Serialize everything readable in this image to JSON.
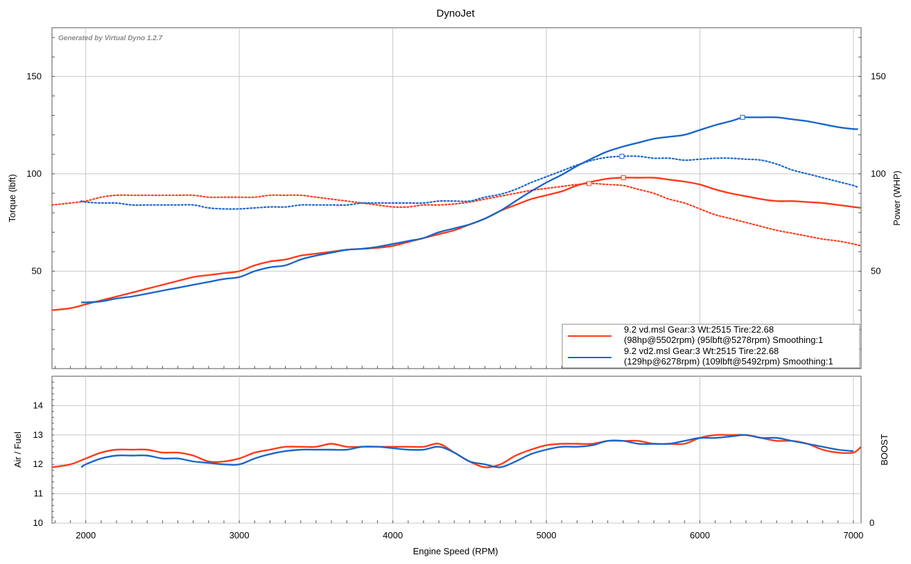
{
  "chart_data": {
    "type": "line",
    "title": "DynoJet",
    "watermark": "Generated by Virtual Dyno 1.2.7",
    "xlabel": "Engine Speed (RPM)",
    "xlim": [
      1780,
      7050
    ],
    "x_ticks": [
      "2000",
      "3000",
      "4000",
      "5000",
      "6000",
      "7000"
    ],
    "top": {
      "ylabel_left": "Torque (lbft)",
      "ylabel_right": "Power (WHP)",
      "ylim": [
        0,
        175
      ],
      "y_ticks": [
        "50",
        "100",
        "150"
      ],
      "series": [
        {
          "name": "9.2 vd.msl",
          "color": "#ff3a1a",
          "power": {
            "x": [
              1780,
              1900,
              2000,
              2100,
              2200,
              2300,
              2400,
              2500,
              2600,
              2700,
              2800,
              2900,
              3000,
              3100,
              3200,
              3300,
              3400,
              3500,
              3600,
              3700,
              3800,
              3900,
              4000,
              4100,
              4200,
              4300,
              4400,
              4500,
              4600,
              4700,
              4800,
              4900,
              5000,
              5100,
              5200,
              5300,
              5400,
              5500,
              5600,
              5700,
              5800,
              5900,
              6000,
              6100,
              6200,
              6300,
              6400,
              6500,
              6600,
              6700,
              6800,
              6900,
              7000,
              7050
            ],
            "y": [
              30,
              31,
              33,
              35,
              37,
              39,
              41,
              43,
              45,
              47,
              48,
              49,
              50,
              53,
              55,
              56,
              58,
              59,
              60,
              61,
              61.5,
              62,
              63,
              65,
              67,
              69,
              71,
              74,
              77,
              81,
              84,
              87,
              89,
              91,
              94,
              96,
              97.5,
              98,
              98,
              98,
              97,
              96,
              94.5,
              92,
              90,
              88.5,
              87,
              86,
              86,
              85.5,
              85,
              84,
              83,
              82.5
            ]
          },
          "torque": {
            "x": [
              1780,
              1900,
              2000,
              2100,
              2200,
              2300,
              2400,
              2500,
              2600,
              2700,
              2800,
              2900,
              3000,
              3100,
              3200,
              3300,
              3400,
              3500,
              3600,
              3700,
              3800,
              3900,
              4000,
              4100,
              4200,
              4300,
              4400,
              4500,
              4600,
              4700,
              4800,
              4900,
              5000,
              5100,
              5200,
              5300,
              5400,
              5500,
              5600,
              5700,
              5800,
              5900,
              6000,
              6100,
              6200,
              6300,
              6400,
              6500,
              6600,
              6700,
              6800,
              6900,
              7000,
              7050
            ],
            "y": [
              84,
              85,
              86,
              88,
              89,
              89,
              89,
              89,
              89,
              89,
              88,
              88,
              88,
              88,
              89,
              89,
              89,
              88,
              87,
              86,
              85,
              84,
              83,
              83,
              84,
              84,
              84.5,
              85.5,
              87,
              88.5,
              90,
              91.5,
              92.5,
              93.5,
              94.5,
              95,
              94.5,
              94,
              92,
              90,
              87,
              85,
              82,
              79,
              77,
              75,
              73,
              71,
              69.5,
              68,
              66.5,
              65.5,
              64,
              63
            ]
          },
          "peak_power": {
            "rpm": 5502,
            "value": 98
          },
          "peak_torque": {
            "rpm": 5278,
            "value": 95
          }
        },
        {
          "name": "9.2 vd2.msl",
          "color": "#1a66c8",
          "power": {
            "x": [
              1970,
              2000,
              2100,
              2200,
              2300,
              2400,
              2500,
              2600,
              2700,
              2800,
              2900,
              3000,
              3100,
              3200,
              3300,
              3400,
              3500,
              3600,
              3700,
              3800,
              3900,
              4000,
              4100,
              4200,
              4300,
              4400,
              4500,
              4600,
              4700,
              4800,
              4900,
              5000,
              5100,
              5200,
              5300,
              5400,
              5500,
              5600,
              5700,
              5800,
              5900,
              6000,
              6100,
              6200,
              6278,
              6300,
              6400,
              6500,
              6600,
              6700,
              6800,
              6900,
              7000,
              7030
            ],
            "y": [
              34,
              34,
              34.5,
              36,
              37,
              38.5,
              40,
              41.5,
              43,
              44.5,
              46,
              47,
              50,
              52,
              53,
              56,
              58,
              59.5,
              61,
              61.5,
              62.5,
              64,
              65.5,
              67,
              70,
              72,
              74,
              77,
              81,
              86,
              91,
              95.5,
              99.5,
              104,
              108,
              111.5,
              114,
              116,
              118,
              119,
              120,
              122.5,
              125,
              127,
              129,
              129,
              129,
              129,
              128,
              127,
              125.5,
              124,
              123,
              123
            ]
          },
          "torque": {
            "x": [
              1970,
              2000,
              2100,
              2200,
              2300,
              2400,
              2500,
              2600,
              2700,
              2800,
              2900,
              3000,
              3100,
              3200,
              3300,
              3400,
              3500,
              3600,
              3700,
              3800,
              3900,
              4000,
              4100,
              4200,
              4300,
              4400,
              4500,
              4600,
              4700,
              4800,
              4900,
              5000,
              5100,
              5200,
              5300,
              5400,
              5500,
              5600,
              5700,
              5800,
              5900,
              6000,
              6100,
              6200,
              6300,
              6400,
              6500,
              6600,
              6700,
              6800,
              6900,
              7000,
              7030
            ],
            "y": [
              86,
              85.5,
              85,
              85,
              84,
              84,
              84,
              84,
              84,
              82.5,
              82,
              82,
              82.5,
              83,
              83,
              84,
              84,
              84,
              84,
              85,
              85,
              85,
              85,
              85,
              86,
              86,
              86,
              88,
              89.5,
              92,
              95.5,
              98.5,
              101.5,
              104.5,
              107,
              108.5,
              109,
              109,
              108,
              108,
              107,
              107.5,
              108,
              108,
              107.5,
              107,
              105,
              102,
              100,
              98,
              96,
              94,
              93
            ]
          },
          "peak_power": {
            "rpm": 6278,
            "value": 129
          },
          "peak_torque": {
            "rpm": 5492,
            "value": 109
          }
        }
      ],
      "legend": {
        "placement": "bottom-right",
        "entries": [
          {
            "line1": "9.2 vd.msl Gear:3 Wt:2515 Tire:22.68",
            "line2": "(98hp@5502rpm) (95lbft@5278rpm) Smoothing:1",
            "color": "#ff3a1a"
          },
          {
            "line1": "9.2 vd2.msl Gear:3 Wt:2515 Tire:22.68",
            "line2": "(129hp@6278rpm) (109lbft@5492rpm) Smoothing:1",
            "color": "#1a66c8"
          }
        ]
      }
    },
    "bottom": {
      "ylabel_left": "Air / Fuel",
      "ylabel_right": "BOOST",
      "ylim": [
        10,
        15
      ],
      "y_ticks": [
        "10",
        "11",
        "12",
        "13",
        "14"
      ],
      "y_right_ticks": [
        "0"
      ],
      "series": [
        {
          "name": "9.2 vd.msl",
          "color": "#ff3a1a",
          "x": [
            1780,
            1900,
            2000,
            2100,
            2200,
            2300,
            2400,
            2500,
            2600,
            2700,
            2800,
            2900,
            3000,
            3100,
            3200,
            3300,
            3400,
            3500,
            3600,
            3700,
            3800,
            3900,
            4000,
            4100,
            4200,
            4300,
            4400,
            4500,
            4600,
            4700,
            4800,
            4900,
            5000,
            5100,
            5200,
            5300,
            5400,
            5500,
            5600,
            5700,
            5800,
            5900,
            6000,
            6100,
            6200,
            6300,
            6400,
            6500,
            6600,
            6700,
            6800,
            6900,
            7000,
            7050
          ],
          "y": [
            11.9,
            12.0,
            12.2,
            12.4,
            12.5,
            12.5,
            12.5,
            12.4,
            12.4,
            12.3,
            12.1,
            12.1,
            12.2,
            12.4,
            12.5,
            12.6,
            12.6,
            12.6,
            12.7,
            12.6,
            12.6,
            12.6,
            12.6,
            12.6,
            12.6,
            12.7,
            12.4,
            12.1,
            11.9,
            12.0,
            12.3,
            12.5,
            12.65,
            12.7,
            12.7,
            12.7,
            12.8,
            12.8,
            12.8,
            12.7,
            12.7,
            12.7,
            12.9,
            13.0,
            13.0,
            13.0,
            12.9,
            12.8,
            12.8,
            12.7,
            12.5,
            12.4,
            12.4,
            12.6
          ]
        },
        {
          "name": "9.2 vd2.msl",
          "color": "#1a66c8",
          "x": [
            1970,
            2000,
            2100,
            2200,
            2300,
            2400,
            2500,
            2600,
            2700,
            2800,
            2900,
            3000,
            3100,
            3200,
            3300,
            3400,
            3500,
            3600,
            3700,
            3800,
            3900,
            4000,
            4100,
            4200,
            4300,
            4400,
            4500,
            4600,
            4700,
            4800,
            4900,
            5000,
            5100,
            5200,
            5300,
            5400,
            5500,
            5600,
            5700,
            5800,
            5900,
            6000,
            6100,
            6200,
            6300,
            6400,
            6500,
            6600,
            6700,
            6800,
            6900,
            7000
          ],
          "y": [
            11.9,
            12.0,
            12.2,
            12.3,
            12.3,
            12.3,
            12.2,
            12.2,
            12.1,
            12.05,
            12.0,
            12.0,
            12.2,
            12.35,
            12.45,
            12.5,
            12.5,
            12.5,
            12.5,
            12.6,
            12.6,
            12.55,
            12.5,
            12.5,
            12.6,
            12.4,
            12.1,
            12.0,
            11.9,
            12.1,
            12.35,
            12.5,
            12.6,
            12.6,
            12.65,
            12.8,
            12.8,
            12.7,
            12.7,
            12.7,
            12.8,
            12.9,
            12.9,
            12.95,
            13.0,
            12.9,
            12.9,
            12.8,
            12.7,
            12.6,
            12.5,
            12.45
          ]
        }
      ]
    }
  }
}
